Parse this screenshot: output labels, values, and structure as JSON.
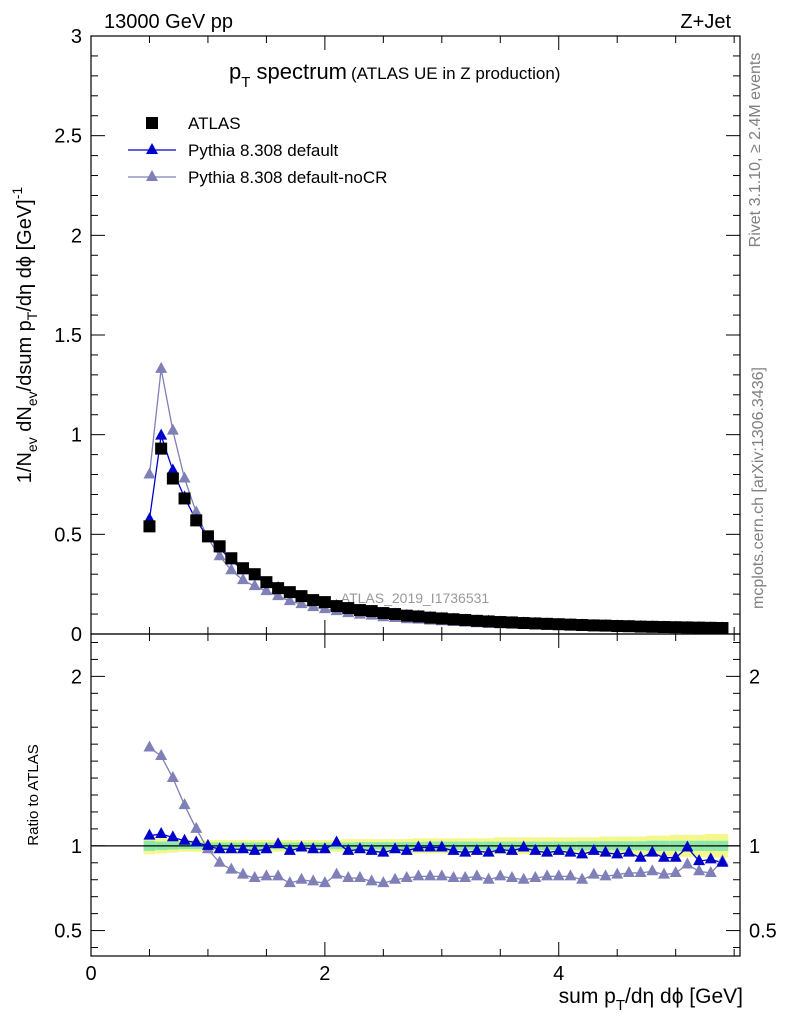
{
  "header": {
    "energy_label": "13000 GeV pp",
    "process_label": "Z+Jet"
  },
  "side": {
    "rivet_label": "Rivet 3.1.10, ≥ 2.4M events",
    "mcplots_label": "mcplots.cern.ch [arXiv:1306.3436]"
  },
  "chart_data": {
    "type": "scatter",
    "title_main": "p",
    "title_sub": "T",
    "title_rest": " spectrum",
    "title_small": "(ATLAS UE in Z production)",
    "analysis_label": "ATLAS_2019_I1736531",
    "xlabel": "sum p_T/dη dϕ [GeV]",
    "ylabel": "1/N_ev dN_ev/dsum p_T/dη dϕ [GeV]^-1",
    "ratio_ylabel": "Ratio to ATLAS",
    "xlim": [
      0,
      5.55
    ],
    "ylim": [
      0,
      3
    ],
    "ratio_ylim": [
      0.35,
      2.25
    ],
    "x_ticks": [
      "0",
      "2",
      "4"
    ],
    "y_ticks": [
      "0",
      "0.5",
      "1",
      "1.5",
      "2",
      "2.5",
      "3"
    ],
    "ratio_ticks": [
      "0.5",
      "1",
      "2"
    ],
    "legend": [
      "ATLAS",
      "Pythia 8.308 default",
      "Pythia 8.308 default-noCR"
    ],
    "legend_position": "top-left",
    "colors": {
      "data": "#000000",
      "default": "#0000cc",
      "nocr": "#8080b8"
    },
    "x": [
      0.5,
      0.6,
      0.7,
      0.8,
      0.9,
      1.0,
      1.1,
      1.2,
      1.3,
      1.4,
      1.5,
      1.6,
      1.7,
      1.8,
      1.9,
      2.0,
      2.1,
      2.2,
      2.3,
      2.4,
      2.5,
      2.6,
      2.7,
      2.8,
      2.9,
      3.0,
      3.1,
      3.2,
      3.3,
      3.4,
      3.5,
      3.6,
      3.7,
      3.8,
      3.9,
      4.0,
      4.1,
      4.2,
      4.3,
      4.4,
      4.5,
      4.6,
      4.7,
      4.8,
      4.9,
      5.0,
      5.1,
      5.2,
      5.3,
      5.4
    ],
    "series": [
      {
        "name": "ATLAS",
        "values": [
          0.54,
          0.93,
          0.78,
          0.68,
          0.57,
          0.49,
          0.44,
          0.38,
          0.33,
          0.3,
          0.26,
          0.23,
          0.21,
          0.19,
          0.17,
          0.16,
          0.14,
          0.13,
          0.12,
          0.115,
          0.105,
          0.1,
          0.092,
          0.088,
          0.082,
          0.078,
          0.074,
          0.07,
          0.066,
          0.063,
          0.06,
          0.058,
          0.055,
          0.053,
          0.051,
          0.049,
          0.047,
          0.045,
          0.043,
          0.042,
          0.04,
          0.039,
          0.037,
          0.036,
          0.035,
          0.034,
          0.033,
          0.032,
          0.031,
          0.03
        ]
      },
      {
        "name": "Pythia 8.308 default",
        "values": [
          0.575,
          0.995,
          0.82,
          0.685,
          0.57,
          0.485,
          0.43,
          0.37,
          0.32,
          0.29,
          0.255,
          0.23,
          0.205,
          0.185,
          0.165,
          0.155,
          0.14,
          0.125,
          0.118,
          0.11,
          0.1,
          0.098,
          0.09,
          0.087,
          0.081,
          0.077,
          0.072,
          0.068,
          0.064,
          0.062,
          0.058,
          0.056,
          0.053,
          0.051,
          0.049,
          0.047,
          0.045,
          0.043,
          0.041,
          0.04,
          0.038,
          0.037,
          0.035,
          0.034,
          0.033,
          0.032,
          0.031,
          0.03,
          0.029,
          0.028
        ]
      },
      {
        "name": "Pythia 8.308 default-noCR",
        "values": [
          0.8,
          1.33,
          1.02,
          0.78,
          0.61,
          0.48,
          0.39,
          0.32,
          0.27,
          0.24,
          0.215,
          0.19,
          0.165,
          0.15,
          0.135,
          0.125,
          0.115,
          0.105,
          0.097,
          0.092,
          0.084,
          0.08,
          0.074,
          0.072,
          0.067,
          0.064,
          0.06,
          0.057,
          0.054,
          0.051,
          0.049,
          0.047,
          0.045,
          0.043,
          0.041,
          0.04,
          0.038,
          0.036,
          0.035,
          0.034,
          0.033,
          0.031,
          0.03,
          0.029,
          0.028,
          0.027,
          0.026,
          0.025,
          0.024,
          0.023
        ]
      }
    ],
    "ratio_series": [
      {
        "name": "Pythia 8.308 default",
        "values": [
          1.06,
          1.07,
          1.05,
          1.03,
          1.02,
          1.0,
          0.98,
          0.98,
          0.98,
          0.97,
          0.98,
          1.01,
          0.97,
          0.99,
          0.98,
          0.98,
          1.02,
          0.97,
          0.98,
          0.97,
          0.96,
          0.98,
          0.97,
          0.99,
          0.99,
          0.99,
          0.97,
          0.96,
          0.97,
          0.96,
          0.98,
          0.97,
          0.99,
          0.97,
          0.96,
          0.97,
          0.96,
          0.95,
          0.97,
          0.96,
          0.95,
          0.96,
          0.93,
          0.96,
          0.93,
          0.93,
          0.99,
          0.91,
          0.92,
          0.9
        ]
      },
      {
        "name": "Pythia 8.308 default-noCR",
        "values": [
          1.58,
          1.53,
          1.4,
          1.24,
          1.1,
          0.98,
          0.9,
          0.86,
          0.83,
          0.81,
          0.82,
          0.82,
          0.78,
          0.8,
          0.79,
          0.78,
          0.83,
          0.81,
          0.81,
          0.79,
          0.78,
          0.8,
          0.81,
          0.82,
          0.82,
          0.82,
          0.81,
          0.81,
          0.82,
          0.8,
          0.82,
          0.81,
          0.8,
          0.81,
          0.82,
          0.82,
          0.82,
          0.8,
          0.83,
          0.82,
          0.83,
          0.84,
          0.84,
          0.85,
          0.83,
          0.84,
          0.89,
          0.85,
          0.84,
          0.91
        ]
      }
    ],
    "band_inner_halfwidth": [
      0.03,
      0.025,
      0.022,
      0.02,
      0.02,
      0.02,
      0.02,
      0.02,
      0.02,
      0.02,
      0.02,
      0.02,
      0.02,
      0.02,
      0.02,
      0.02,
      0.02,
      0.02,
      0.022,
      0.022,
      0.022,
      0.022,
      0.022,
      0.022,
      0.025,
      0.025,
      0.025,
      0.025,
      0.025,
      0.025,
      0.025,
      0.025,
      0.025,
      0.025,
      0.025,
      0.025,
      0.025,
      0.027,
      0.027,
      0.027,
      0.027,
      0.027,
      0.027,
      0.03,
      0.03,
      0.03,
      0.03,
      0.03,
      0.03,
      0.03
    ],
    "band_outer_halfwidth": [
      0.05,
      0.045,
      0.04,
      0.035,
      0.035,
      0.035,
      0.035,
      0.035,
      0.035,
      0.035,
      0.035,
      0.035,
      0.035,
      0.035,
      0.035,
      0.035,
      0.035,
      0.04,
      0.04,
      0.04,
      0.04,
      0.04,
      0.04,
      0.045,
      0.045,
      0.045,
      0.045,
      0.045,
      0.045,
      0.045,
      0.05,
      0.05,
      0.05,
      0.05,
      0.05,
      0.05,
      0.05,
      0.05,
      0.05,
      0.055,
      0.055,
      0.055,
      0.055,
      0.06,
      0.06,
      0.065,
      0.065,
      0.065,
      0.07,
      0.07
    ]
  }
}
